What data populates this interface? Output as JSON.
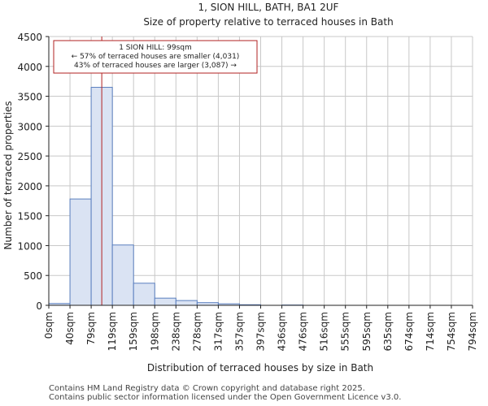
{
  "colors": {
    "bar_fill": "#dae3f3",
    "bar_stroke": "#5a7fbf",
    "marker": "#b22222",
    "annotation_border": "#b22222",
    "grid": "#c8c8c8",
    "axis": "#222222",
    "text": "#222222"
  },
  "chart_data": {
    "type": "bar",
    "title_line1": "1, SION HILL, BATH, BA1 2UF",
    "title_line2": "Size of property relative to terraced houses in Bath",
    "xlabel": "Distribution of terraced houses by size in Bath",
    "ylabel": "Number of terraced properties",
    "ylim": [
      0,
      4500
    ],
    "yticks": [
      0,
      500,
      1000,
      1500,
      2000,
      2500,
      3000,
      3500,
      4000,
      4500
    ],
    "grid": true,
    "bin_labels": [
      "0sqm",
      "40sqm",
      "79sqm",
      "119sqm",
      "159sqm",
      "198sqm",
      "238sqm",
      "278sqm",
      "317sqm",
      "357sqm",
      "397sqm",
      "436sqm",
      "476sqm",
      "516sqm",
      "555sqm",
      "595sqm",
      "635sqm",
      "674sqm",
      "714sqm",
      "754sqm",
      "794sqm"
    ],
    "bin_edges_sqm": [
      0,
      40,
      79,
      119,
      159,
      198,
      238,
      278,
      317,
      357,
      397,
      436,
      476,
      516,
      555,
      595,
      635,
      674,
      714,
      754,
      794
    ],
    "values": [
      30,
      1780,
      3650,
      1010,
      370,
      120,
      80,
      45,
      25,
      10,
      0,
      5,
      0,
      0,
      0,
      0,
      0,
      0,
      0,
      0
    ],
    "marker": {
      "value_sqm": 99,
      "label_line1": "1 SION HILL: 99sqm",
      "label_line2": "← 57% of terraced houses are smaller (4,031)",
      "label_line3": "43% of terraced houses are larger (3,087) →"
    }
  },
  "footer": {
    "line1": "Contains HM Land Registry data © Crown copyright and database right 2025.",
    "line2": "Contains public sector information licensed under the Open Government Licence v3.0."
  }
}
